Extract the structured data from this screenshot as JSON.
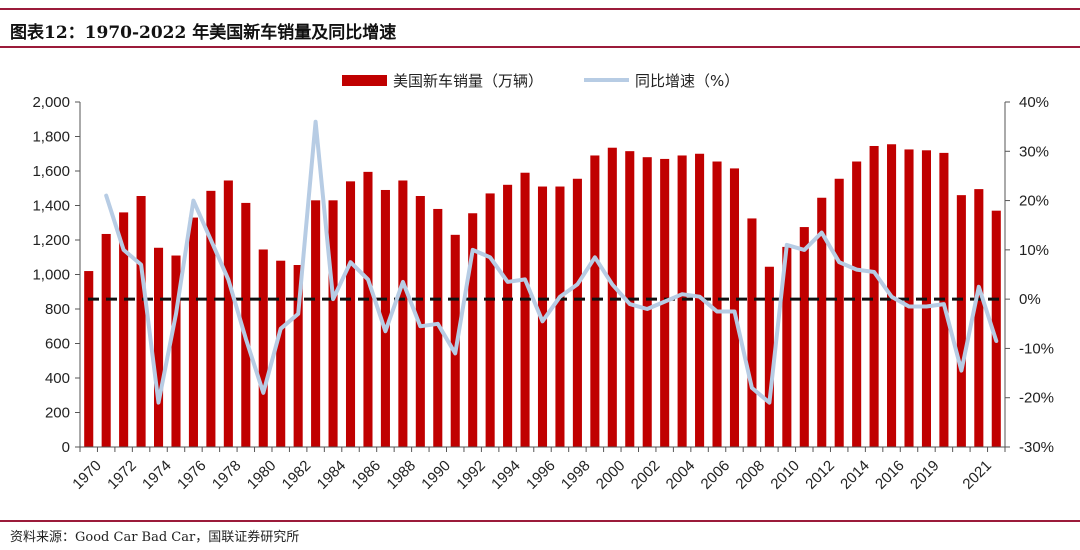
{
  "header": {
    "title": "图表12：1970-2022 年美国新车销量及同比增速"
  },
  "footer": {
    "source": "资料来源：Good Car Bad Car，国联证券研究所"
  },
  "colors": {
    "bar": "#c00000",
    "line": "#b7cce4",
    "zero_line": "#111111",
    "rule": "#9b1b3a"
  },
  "chart_data": {
    "type": "bar+line",
    "title": "图表12：1970-2022 年美国新车销量及同比增速",
    "legend": [
      "美国新车销量（万辆）",
      "同比增速（%）"
    ],
    "legend_position": "top-center",
    "grid": false,
    "x": [
      1970,
      1971,
      1972,
      1973,
      1974,
      1975,
      1976,
      1977,
      1978,
      1979,
      1980,
      1981,
      1982,
      1983,
      1984,
      1985,
      1986,
      1987,
      1988,
      1989,
      1990,
      1991,
      1992,
      1993,
      1994,
      1995,
      1996,
      1997,
      1998,
      1999,
      2000,
      2001,
      2002,
      2003,
      2004,
      2005,
      2006,
      2007,
      2008,
      2009,
      2010,
      2011,
      2012,
      2013,
      2014,
      2015,
      2016,
      2017,
      2018,
      2019,
      2020,
      2021,
      2022
    ],
    "x_tick_labels": [
      "1970",
      "1972",
      "1974",
      "1976",
      "1978",
      "1980",
      "1982",
      "1984",
      "1986",
      "1988",
      "1990",
      "1992",
      "1994",
      "1996",
      "1998",
      "2000",
      "2002",
      "2004",
      "2006",
      "2008",
      "2010",
      "2012",
      "2014",
      "2016",
      "2019",
      "2021"
    ],
    "x_tick_indices": [
      0,
      2,
      4,
      6,
      8,
      10,
      12,
      14,
      16,
      18,
      20,
      22,
      24,
      26,
      28,
      30,
      32,
      34,
      36,
      38,
      40,
      42,
      44,
      46,
      48,
      51
    ],
    "series": [
      {
        "name": "美国新车销量（万辆）",
        "type": "bar",
        "axis": "left",
        "values": [
          1020,
          1235,
          1360,
          1455,
          1155,
          1110,
          1330,
          1485,
          1545,
          1415,
          1145,
          1080,
          1055,
          1430,
          1430,
          1540,
          1595,
          1490,
          1545,
          1455,
          1380,
          1230,
          1355,
          1470,
          1520,
          1590,
          1510,
          1510,
          1555,
          1690,
          1735,
          1715,
          1680,
          1670,
          1690,
          1700,
          1655,
          1615,
          1325,
          1045,
          1160,
          1275,
          1445,
          1555,
          1655,
          1745,
          1755,
          1725,
          1720,
          1705,
          1460,
          1495,
          1370
        ]
      },
      {
        "name": "同比增速（%）",
        "type": "line",
        "axis": "right",
        "values": [
          null,
          21,
          10,
          7,
          -21,
          -3,
          20,
          12,
          4,
          -8,
          -19,
          -6,
          -3,
          36,
          0,
          7.5,
          4,
          -6.5,
          3.5,
          -5.5,
          -5,
          -11,
          10,
          8.5,
          3.5,
          4,
          -4.5,
          0.5,
          3,
          8.5,
          3,
          -1,
          -2,
          -0.5,
          1,
          0.5,
          -2.5,
          -2.5,
          -18,
          -21,
          11,
          10,
          13.5,
          7.5,
          6,
          5.5,
          0.5,
          -1.5,
          -1.5,
          -1,
          -14.5,
          2.5,
          -8.5
        ]
      },
      {
        "name": "zero",
        "type": "hline",
        "axis": "right",
        "value": 0
      }
    ],
    "y_left": {
      "min": 0,
      "max": 2000,
      "step": 200,
      "tick_labels": [
        "0",
        "200",
        "400",
        "600",
        "800",
        "1,000",
        "1,200",
        "1,400",
        "1,600",
        "1,800",
        "2,000"
      ]
    },
    "y_right": {
      "min": -30,
      "max": 40,
      "step": 10,
      "tick_labels": [
        "-30%",
        "-20%",
        "-10%",
        "0%",
        "10%",
        "20%",
        "30%",
        "40%"
      ]
    }
  }
}
